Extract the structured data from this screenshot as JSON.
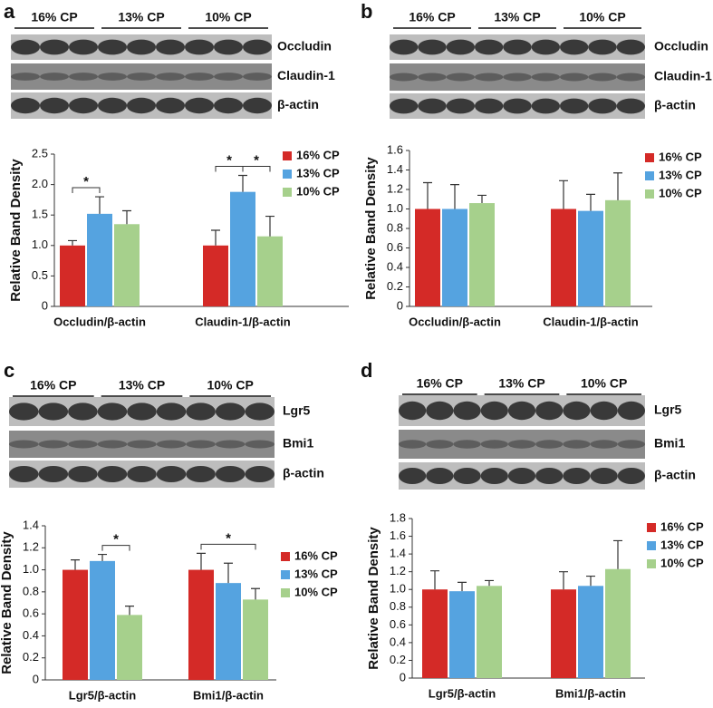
{
  "chart_data": [
    {
      "type": "bar",
      "panel_label": "a",
      "blot": {
        "groups": [
          "16% CP",
          "13% CP",
          "10% CP"
        ],
        "bands": [
          "Occludin",
          "Claudin-1",
          "β-actin"
        ]
      },
      "ylabel": "Relative Band Density",
      "categories": [
        "Occludin/β-actin",
        "Claudin-1/β-actin"
      ],
      "series": [
        {
          "name": "16% CP",
          "color": "#d42a27",
          "values": [
            1.0,
            1.0
          ],
          "errors": [
            0.08,
            0.25
          ]
        },
        {
          "name": "13% CP",
          "color": "#55a3e0",
          "values": [
            1.52,
            1.88
          ],
          "errors": [
            0.28,
            0.27
          ]
        },
        {
          "name": "10% CP",
          "color": "#a6d08c",
          "values": [
            1.35,
            1.15
          ],
          "errors": [
            0.22,
            0.33
          ]
        }
      ],
      "ylim": [
        0,
        2.5
      ],
      "yticks": [
        0,
        0.5,
        {
          "value": 1,
          "label": "1.0"
        },
        1.5,
        {
          "value": 2,
          "label": "2.0"
        },
        2.5
      ],
      "annotations": [
        "*",
        "*",
        "*"
      ]
    },
    {
      "type": "bar",
      "panel_label": "b",
      "blot": {
        "groups": [
          "16% CP",
          "13% CP",
          "10% CP"
        ],
        "bands": [
          "Occludin",
          "Claudin-1",
          "β-actin"
        ]
      },
      "ylabel": "Relative Band Density",
      "categories": [
        "Occludin/β-actin",
        "Claudin-1/β-actin"
      ],
      "series": [
        {
          "name": "16% CP",
          "color": "#d42a27",
          "values": [
            1.0,
            1.0
          ],
          "errors": [
            0.27,
            0.29
          ]
        },
        {
          "name": "13% CP",
          "color": "#55a3e0",
          "values": [
            1.0,
            0.98
          ],
          "errors": [
            0.25,
            0.17
          ]
        },
        {
          "name": "10% CP",
          "color": "#a6d08c",
          "values": [
            1.06,
            1.09
          ],
          "errors": [
            0.08,
            0.28
          ]
        }
      ],
      "ylim": [
        0,
        1.6
      ],
      "yticks": [
        0,
        0.2,
        0.4,
        0.6,
        0.8,
        {
          "value": 1,
          "label": "1.0"
        },
        1.2,
        1.4,
        1.6
      ],
      "annotations": []
    },
    {
      "type": "bar",
      "panel_label": "c",
      "blot": {
        "groups": [
          "16% CP",
          "13% CP",
          "10% CP"
        ],
        "bands": [
          "Lgr5",
          "Bmi1",
          "β-actin"
        ]
      },
      "ylabel": "Relative Band Density",
      "categories": [
        "Lgr5/β-actin",
        "Bmi1/β-actin"
      ],
      "series": [
        {
          "name": "16% CP",
          "color": "#d42a27",
          "values": [
            1.0,
            1.0
          ],
          "errors": [
            0.09,
            0.15
          ]
        },
        {
          "name": "13% CP",
          "color": "#55a3e0",
          "values": [
            1.08,
            0.88
          ],
          "errors": [
            0.06,
            0.18
          ]
        },
        {
          "name": "10% CP",
          "color": "#a6d08c",
          "values": [
            0.59,
            0.73
          ],
          "errors": [
            0.08,
            0.1
          ]
        }
      ],
      "ylim": [
        0,
        1.4
      ],
      "yticks": [
        0,
        0.2,
        0.4,
        0.6,
        0.8,
        {
          "value": 1,
          "label": "1.0"
        },
        1.2,
        1.4
      ],
      "annotations": [
        "*",
        "*"
      ]
    },
    {
      "type": "bar",
      "panel_label": "d",
      "blot": {
        "groups": [
          "16% CP",
          "13% CP",
          "10% CP"
        ],
        "bands": [
          "Lgr5",
          "Bmi1",
          "β-actin"
        ]
      },
      "ylabel": "Relative Band Density",
      "categories": [
        "Lgr5/β-actin",
        "Bmi1/β-actin"
      ],
      "series": [
        {
          "name": "16% CP",
          "color": "#d42a27",
          "values": [
            1.0,
            1.0
          ],
          "errors": [
            0.21,
            0.2
          ]
        },
        {
          "name": "13% CP",
          "color": "#55a3e0",
          "values": [
            0.98,
            1.04
          ],
          "errors": [
            0.1,
            0.11
          ]
        },
        {
          "name": "10% CP",
          "color": "#a6d08c",
          "values": [
            1.04,
            1.23
          ],
          "errors": [
            0.06,
            0.32
          ]
        }
      ],
      "ylim": [
        0,
        1.8
      ],
      "yticks": [
        0,
        0.2,
        0.4,
        0.6,
        0.8,
        {
          "value": 1,
          "label": "1.0"
        },
        1.2,
        1.4,
        1.6,
        1.8
      ],
      "annotations": []
    }
  ]
}
